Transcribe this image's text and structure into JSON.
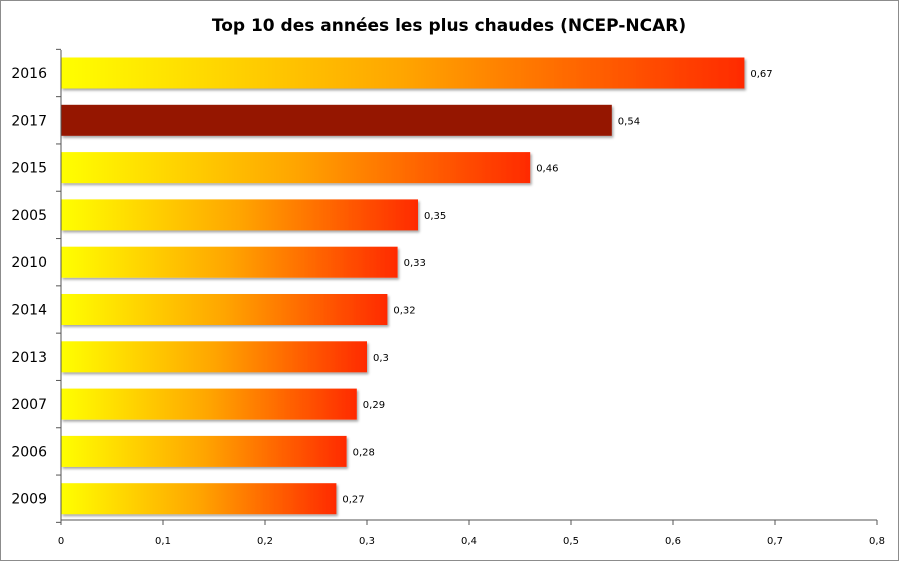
{
  "chart_data": {
    "type": "bar",
    "orientation": "horizontal",
    "title": "Top 10 des années les plus chaudes (NCEP-NCAR)",
    "xlabel": "",
    "ylabel": "",
    "xlim": [
      0,
      0.8
    ],
    "x_ticks": [
      0,
      0.1,
      0.2,
      0.3,
      0.4,
      0.5,
      0.6,
      0.7,
      0.8
    ],
    "x_tick_labels": [
      "0",
      "0,1",
      "0,2",
      "0,3",
      "0,4",
      "0,5",
      "0,6",
      "0,7",
      "0,8"
    ],
    "grid": false,
    "legend": "none",
    "categories": [
      "2016",
      "2017",
      "2015",
      "2005",
      "2010",
      "2014",
      "2013",
      "2007",
      "2006",
      "2009"
    ],
    "values": [
      0.67,
      0.54,
      0.46,
      0.35,
      0.33,
      0.32,
      0.3,
      0.29,
      0.28,
      0.27
    ],
    "value_labels": [
      "0,67",
      "0,54",
      "0,46",
      "0,35",
      "0,33",
      "0,32",
      "0,3",
      "0,29",
      "0,28",
      "0,27"
    ],
    "highlight_category": "2017",
    "colors": {
      "gradient_start": "#ffff00",
      "gradient_mid": "#ffa500",
      "gradient_end": "#ff2a00",
      "highlight": "#951200",
      "axis": "#555555"
    }
  }
}
